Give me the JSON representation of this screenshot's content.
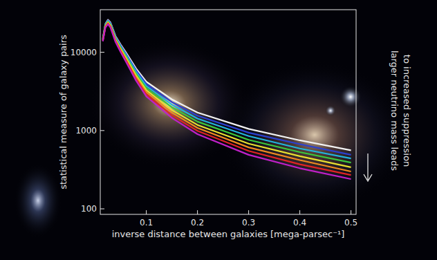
{
  "chart_data": {
    "type": "line",
    "y_label": "statistical measure of galaxy pairs",
    "x_label": "inverse distance between galaxies [mega-parsec⁻¹]",
    "annotation": [
      "larger neutrino mass leads",
      "to increased suppression"
    ],
    "log": "y",
    "xlim": [
      0.01,
      0.51
    ],
    "ylim": [
      85,
      35000
    ],
    "xticks": [
      0.1,
      0.2,
      0.3,
      0.4,
      0.5
    ],
    "yticks": [
      100,
      1000,
      10000
    ],
    "x": [
      0.015,
      0.02,
      0.025,
      0.03,
      0.04,
      0.05,
      0.06,
      0.08,
      0.1,
      0.15,
      0.2,
      0.3,
      0.4,
      0.5
    ],
    "series": [
      {
        "color": "#f2f2f2",
        "values": [
          15000,
          23000,
          26000,
          24000,
          16000,
          12500,
          10000,
          6200,
          4200,
          2500,
          1700,
          1050,
          750,
          560
        ]
      },
      {
        "color": "#2b40d0",
        "values": [
          14800,
          22650,
          25530,
          23490,
          15610,
          12110,
          9620,
          5890,
          3950,
          2310,
          1550,
          940,
          670,
          490
        ]
      },
      {
        "color": "#22b4dc",
        "values": [
          14600,
          22310,
          25070,
          22990,
          15220,
          11730,
          9250,
          5600,
          3710,
          2140,
          1420,
          850,
          590,
          440
        ]
      },
      {
        "color": "#3cc83c",
        "values": [
          14500,
          21980,
          24610,
          22500,
          14850,
          11360,
          8890,
          5320,
          3490,
          1980,
          1300,
          760,
          530,
          390
        ]
      },
      {
        "color": "#e8e030",
        "values": [
          14300,
          21650,
          24170,
          22020,
          14480,
          11000,
          8550,
          5060,
          3280,
          1830,
          1180,
          680,
          470,
          340
        ]
      },
      {
        "color": "#f08a20",
        "values": [
          14100,
          21320,
          23730,
          21550,
          14130,
          10660,
          8220,
          4800,
          3090,
          1700,
          1080,
          610,
          420,
          300
        ]
      },
      {
        "color": "#e02424",
        "values": [
          14000,
          21000,
          23300,
          21090,
          13780,
          10320,
          7910,
          4560,
          2900,
          1570,
          990,
          550,
          370,
          270
        ]
      },
      {
        "color": "#c020c8",
        "values": [
          13800,
          20700,
          22880,
          20640,
          13440,
          10000,
          7600,
          4340,
          2730,
          1450,
          900,
          490,
          330,
          240
        ]
      }
    ]
  }
}
